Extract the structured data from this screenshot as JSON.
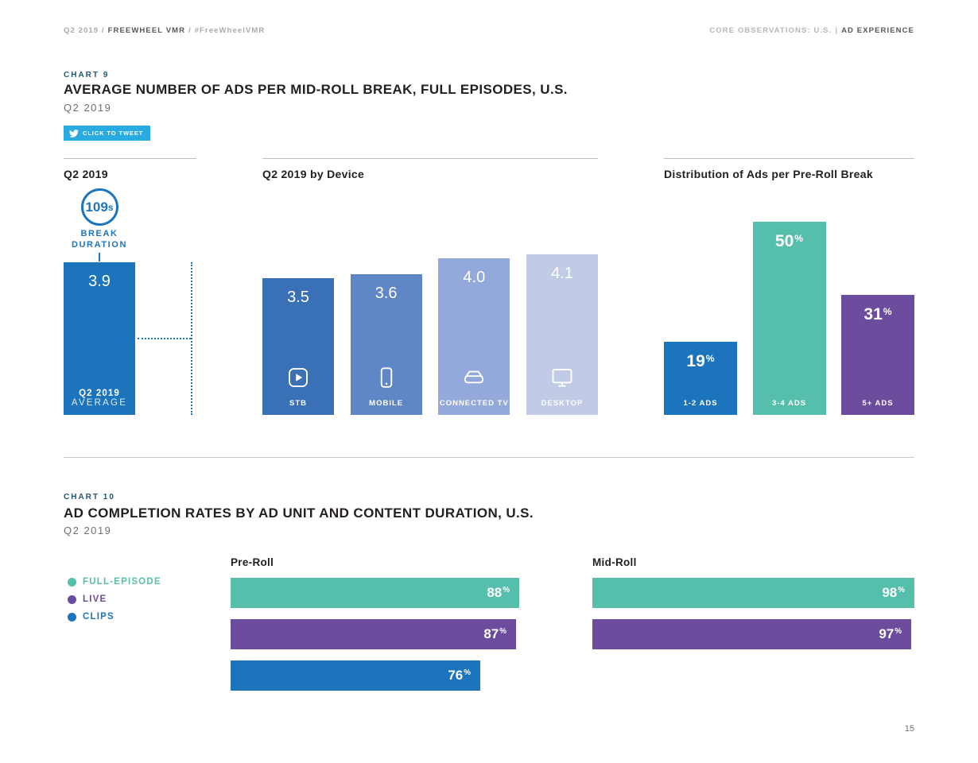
{
  "header": {
    "left": {
      "prefix": "Q2 2019 /",
      "brand": "FREEWHEEL VMR",
      "tag": "/ #FreeWheelVMR"
    },
    "right": {
      "section": "CORE OBSERVATIONS: U.S.",
      "divider": "|",
      "topic": "AD EXPERIENCE"
    }
  },
  "page_number": "15",
  "chart9": {
    "label": "CHART 9",
    "title": "AVERAGE NUMBER OF ADS PER MID-ROLL BREAK, FULL EPISODES, U.S.",
    "subtitle": "Q2 2019",
    "tweet_label": "CLICK TO TWEET",
    "panel_q2": {
      "heading": "Q2 2019",
      "badge_number": "109",
      "badge_suffix": "s",
      "badge_label_line1": "BREAK",
      "badge_label_line2": "DURATION",
      "caption_line1": "Q2 2019",
      "caption_line2": "AVERAGE"
    },
    "panel_device": {
      "heading": "Q2 2019 by Device"
    },
    "panel_dist": {
      "heading": "Distribution of Ads per Pre-Roll Break"
    }
  },
  "chart10": {
    "label": "CHART 10",
    "title": "AD COMPLETION RATES BY AD UNIT AND CONTENT DURATION, U.S.",
    "subtitle": "Q2 2019",
    "legend": [
      {
        "label": "FULL-EPISODE",
        "color": "#56BFAC"
      },
      {
        "label": "LIVE",
        "color": "#6C4C9D"
      },
      {
        "label": "CLIPS",
        "color": "#1C75BC"
      }
    ]
  },
  "chart_data": [
    {
      "type": "bar",
      "title": "Q2 2019",
      "categories": [
        "Q2 2019 AVERAGE"
      ],
      "values": [
        3.9
      ],
      "value_labels": [
        "3.9"
      ],
      "ylim": [
        0,
        4.1
      ],
      "color": "#1C75BC",
      "annotation": "109s BREAK DURATION"
    },
    {
      "type": "bar",
      "title": "Q2 2019 by Device",
      "categories": [
        "STB",
        "MOBILE",
        "CONNECTED TV",
        "DESKTOP"
      ],
      "values": [
        3.5,
        3.6,
        4.0,
        4.1
      ],
      "value_labels": [
        "3.5",
        "3.6",
        "4.0",
        "4.1"
      ],
      "colors": [
        "#3A70B5",
        "#5F87C6",
        "#93A9DB",
        "#C2CBE6"
      ],
      "icons": [
        "stb-icon",
        "mobile-icon",
        "connected-tv-icon",
        "desktop-icon"
      ],
      "ylim": [
        0,
        4.1
      ]
    },
    {
      "type": "bar",
      "title": "Distribution of Ads per Pre-Roll Break",
      "categories": [
        "1-2 ADS",
        "3-4 ADS",
        "5+ ADS"
      ],
      "values": [
        19,
        50,
        31
      ],
      "value_labels": [
        "19",
        "50",
        "31"
      ],
      "unit": "%",
      "colors": [
        "#1C75BC",
        "#56BFAC",
        "#6C4C9D"
      ],
      "ylim": [
        0,
        50
      ]
    },
    {
      "type": "bar",
      "orientation": "horizontal",
      "title": "Pre-Roll",
      "unit": "%",
      "xlim": [
        0,
        100
      ],
      "series": [
        {
          "name": "FULL-EPISODE",
          "value": 88,
          "label": "88",
          "color": "#56BFAC"
        },
        {
          "name": "LIVE",
          "value": 87,
          "label": "87",
          "color": "#6C4C9D"
        },
        {
          "name": "CLIPS",
          "value": 76,
          "label": "76",
          "color": "#1C75BC"
        }
      ]
    },
    {
      "type": "bar",
      "orientation": "horizontal",
      "title": "Mid-Roll",
      "unit": "%",
      "xlim": [
        0,
        100
      ],
      "series": [
        {
          "name": "FULL-EPISODE",
          "value": 98,
          "label": "98",
          "color": "#56BFAC"
        },
        {
          "name": "LIVE",
          "value": 97,
          "label": "97",
          "color": "#6C4C9D"
        }
      ]
    }
  ]
}
